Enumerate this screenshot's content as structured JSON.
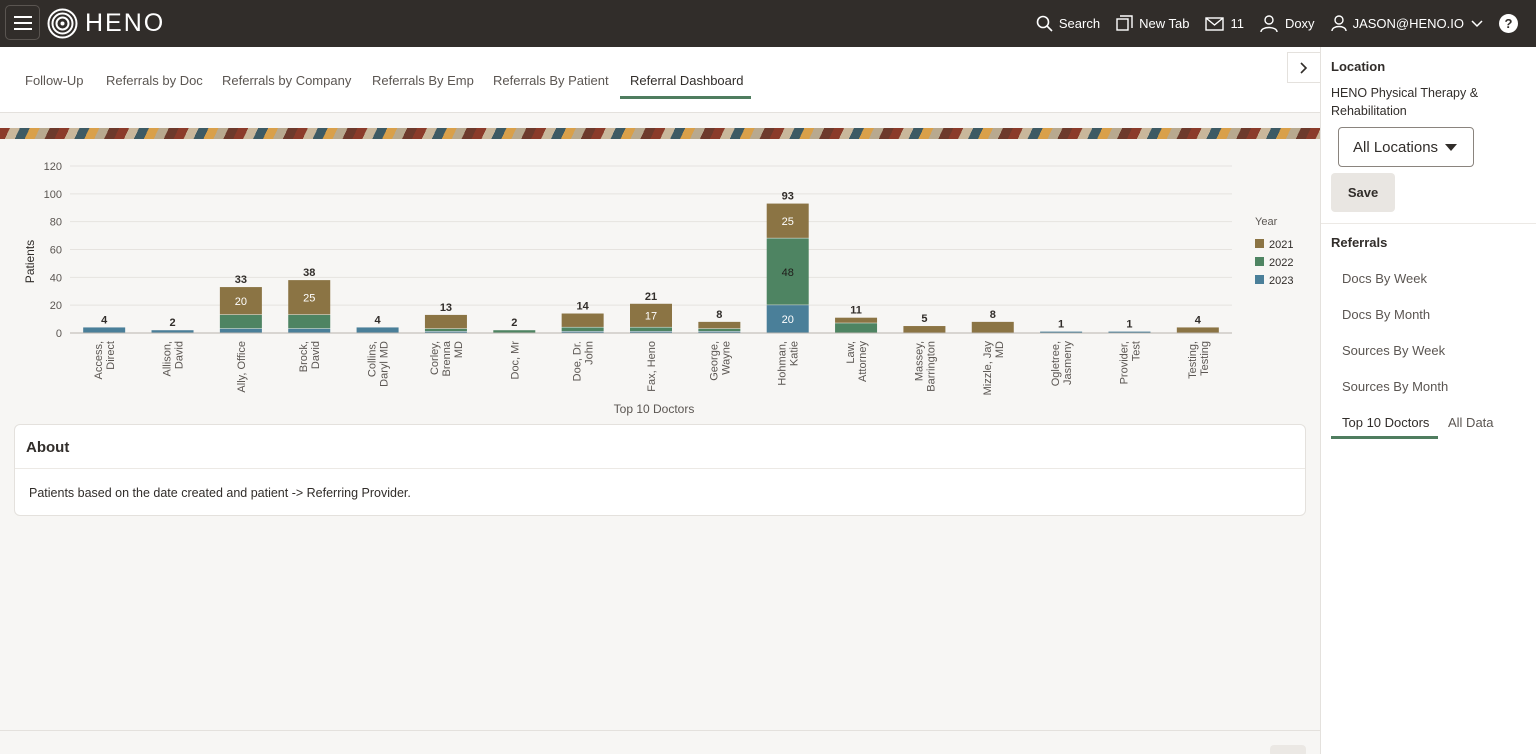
{
  "header": {
    "brand": "HENO",
    "search_label": "Search",
    "newtab_label": "New Tab",
    "mail_count": "11",
    "doxy_label": "Doxy",
    "user_label": "JASON@HENO.IO",
    "help_label": "?"
  },
  "tabs": [
    {
      "label": "Follow-Up",
      "active": false
    },
    {
      "label": "Referrals by Doc",
      "active": false
    },
    {
      "label": "Referrals by Company",
      "active": false
    },
    {
      "label": "Referrals By Emp",
      "active": false
    },
    {
      "label": "Referrals By Patient",
      "active": false
    },
    {
      "label": "Referral Dashboard",
      "active": true
    }
  ],
  "chart_data": {
    "type": "bar",
    "stacked": true,
    "xlabel": "Top 10 Doctors",
    "ylabel": "Patients",
    "ylim": [
      0,
      120
    ],
    "yticks": [
      0,
      20,
      40,
      60,
      80,
      100,
      120
    ],
    "legend_title": "Year",
    "legend_position": "right",
    "grid": true,
    "categories": [
      [
        "Access,",
        "Direct"
      ],
      [
        "Allison,",
        "David"
      ],
      [
        "Ally, Office"
      ],
      [
        "Brock,",
        "David"
      ],
      [
        "Collins,",
        "Daryl MD"
      ],
      [
        "Corley,",
        "Brenna",
        "MD"
      ],
      [
        "Doc, Mr"
      ],
      [
        "Doe, Dr.",
        "John"
      ],
      [
        "Fax, Heno"
      ],
      [
        "George,",
        "Wayne"
      ],
      [
        "Hohman,",
        "Katie"
      ],
      [
        "Law,",
        "Attorney"
      ],
      [
        "Massey,",
        "Barrington"
      ],
      [
        "Mizzle, Jay",
        "MD"
      ],
      [
        "Ogletree,",
        "Jasmeny"
      ],
      [
        "Provider,",
        "Test"
      ],
      [
        "Testing,",
        "Testing"
      ]
    ],
    "series": [
      {
        "name": "2021",
        "color": "#8b7444",
        "values": [
          0,
          0,
          20,
          25,
          0,
          10,
          0,
          10,
          17,
          5,
          25,
          4,
          5,
          8,
          0,
          0,
          4
        ]
      },
      {
        "name": "2022",
        "color": "#4e8462",
        "values": [
          0,
          0,
          10,
          10,
          0,
          2,
          2,
          3,
          3,
          2,
          48,
          7,
          0,
          0,
          0,
          0,
          0
        ]
      },
      {
        "name": "2023",
        "color": "#4a7f99",
        "values": [
          4,
          2,
          3,
          3,
          4,
          1,
          0,
          1,
          1,
          1,
          20,
          0,
          0,
          0,
          1,
          1,
          0
        ]
      }
    ],
    "totals": [
      4,
      2,
      33,
      38,
      4,
      13,
      2,
      14,
      21,
      8,
      93,
      11,
      5,
      8,
      1,
      1,
      4
    ],
    "segment_labels": [
      {
        "category_index": 2,
        "series": "2021",
        "text": "20"
      },
      {
        "category_index": 3,
        "series": "2021",
        "text": "25"
      },
      {
        "category_index": 8,
        "series": "2021",
        "text": "17"
      },
      {
        "category_index": 10,
        "series": "2021",
        "text": "25"
      },
      {
        "category_index": 10,
        "series": "2022",
        "text": "48"
      },
      {
        "category_index": 10,
        "series": "2023",
        "text": "20"
      }
    ]
  },
  "about": {
    "title": "About",
    "text": "Patients based on the date created and patient -> Referring Provider."
  },
  "right_panel": {
    "location_heading": "Location",
    "location_name": "HENO Physical Therapy & Rehabilitation",
    "select_value": "All Locations",
    "save_label": "Save",
    "referrals_heading": "Referrals",
    "links": [
      {
        "label": "Docs By Week",
        "active": false
      },
      {
        "label": "Docs By Month",
        "active": false
      },
      {
        "label": "Sources By Week",
        "active": false
      },
      {
        "label": "Sources By Month",
        "active": false
      },
      {
        "label": "Top 10 Doctors",
        "active": true
      },
      {
        "label": "All Data",
        "active": false
      }
    ]
  }
}
